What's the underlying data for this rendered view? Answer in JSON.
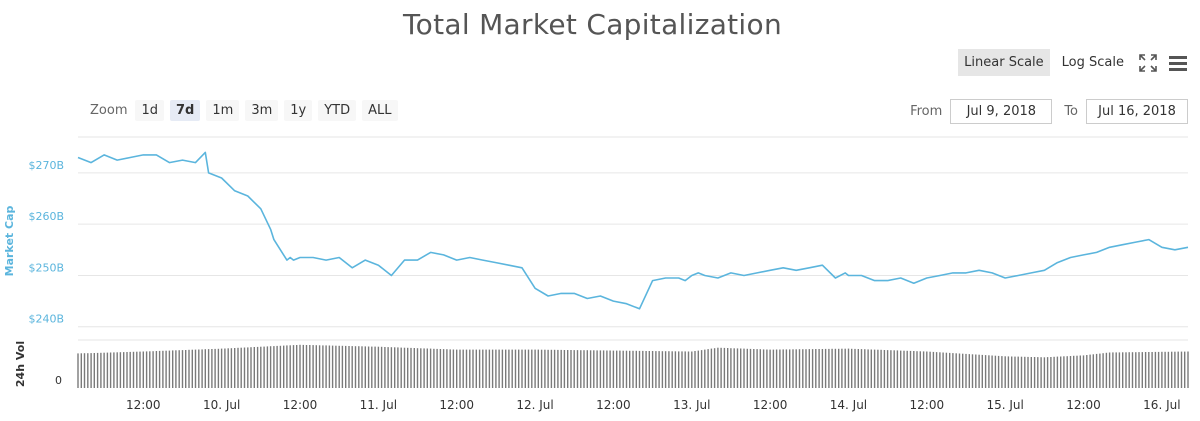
{
  "header": {
    "title": "Total Market Capitalization",
    "linear_scale": "Linear Scale",
    "log_scale": "Log Scale"
  },
  "zoom": {
    "label": "Zoom",
    "buttons": [
      "1d",
      "7d",
      "1m",
      "3m",
      "1y",
      "YTD",
      "ALL"
    ],
    "active": "7d"
  },
  "range": {
    "from_label": "From",
    "from_value": "Jul 9, 2018",
    "to_label": "To",
    "to_value": "Jul 16, 2018"
  },
  "colors": {
    "line": "#5bb5dd",
    "axis_label": "#5bb5dd",
    "volume": "#7a7a7a",
    "grid": "#e6e6e6"
  },
  "chart_data": {
    "type": "line",
    "ylabel": "Market Cap",
    "y_ticks": [
      240,
      250,
      260,
      270
    ],
    "y_tick_labels": [
      "$240B",
      "$250B",
      "$260B",
      "$270B"
    ],
    "ylim": [
      238,
      277
    ],
    "x_ticks": [
      "12:00",
      "10. Jul",
      "12:00",
      "11. Jul",
      "12:00",
      "12. Jul",
      "12:00",
      "13. Jul",
      "12:00",
      "14. Jul",
      "12:00",
      "15. Jul",
      "12:00",
      "16. Jul"
    ],
    "x_tick_hours": [
      12,
      24,
      36,
      48,
      60,
      72,
      84,
      96,
      108,
      120,
      132,
      144,
      156,
      168
    ],
    "xlim_hours": [
      2,
      172
    ],
    "x_unit": "hours since 9 Jul 2018 00:00",
    "series": [
      {
        "name": "Market Cap",
        "x": [
          2,
          4,
          6,
          8,
          10,
          12,
          14,
          16,
          18,
          20,
          21.5,
          22,
          24,
          26,
          28,
          30,
          31.5,
          32,
          34,
          34.5,
          35,
          36,
          37,
          38,
          40,
          42,
          44,
          46,
          48,
          50,
          52,
          54,
          56,
          58,
          60,
          62,
          64,
          66,
          68,
          70,
          72,
          74,
          76,
          78,
          80,
          82,
          84,
          86,
          88,
          90,
          92,
          94,
          95,
          96,
          97,
          98,
          100,
          102,
          104,
          106,
          108,
          110,
          112,
          114,
          116,
          118,
          119.5,
          120,
          122,
          124,
          126,
          128,
          130,
          132,
          134,
          136,
          138,
          140,
          142,
          144,
          146,
          148,
          150,
          152,
          154,
          156,
          158,
          160,
          162,
          164,
          166,
          168,
          170,
          172
        ],
        "y": [
          273,
          272,
          273.5,
          272.5,
          273,
          273.5,
          273.5,
          272,
          272.5,
          272,
          274,
          270,
          269,
          266.5,
          265.5,
          263,
          259,
          257,
          253,
          253.5,
          253,
          253.5,
          253.5,
          253.5,
          253,
          253.5,
          251.5,
          253,
          252,
          250,
          253,
          253,
          254.5,
          254,
          253,
          253.5,
          253,
          252.5,
          252,
          251.5,
          247.5,
          246,
          246.5,
          246.5,
          245.5,
          246,
          245,
          244.5,
          243.5,
          249,
          249.5,
          249.5,
          249,
          250,
          250.5,
          250,
          249.5,
          250.5,
          250,
          250.5,
          251,
          251.5,
          251,
          251.5,
          252,
          249.5,
          250.5,
          250,
          250,
          249,
          249,
          249.5,
          248.5,
          249.5,
          250,
          250.5,
          250.5,
          251,
          250.5,
          249.5,
          250,
          250.5,
          251,
          252.5,
          253.5,
          254,
          254.5,
          255.5,
          256,
          256.5,
          257,
          255.5,
          255,
          255.5
        ]
      },
      {
        "name": "24h Vol",
        "x": [
          2,
          12,
          24,
          36,
          48,
          60,
          72,
          84,
          96,
          100,
          108,
          120,
          132,
          144,
          150,
          156,
          160,
          172
        ],
        "y": [
          0.72,
          0.76,
          0.82,
          0.9,
          0.86,
          0.8,
          0.8,
          0.78,
          0.76,
          0.84,
          0.8,
          0.82,
          0.76,
          0.66,
          0.64,
          0.68,
          0.74,
          0.76
        ],
        "unit": "relative to volume panel height"
      }
    ],
    "volume_label": "24h Vol",
    "volume_zero_label": "0"
  }
}
